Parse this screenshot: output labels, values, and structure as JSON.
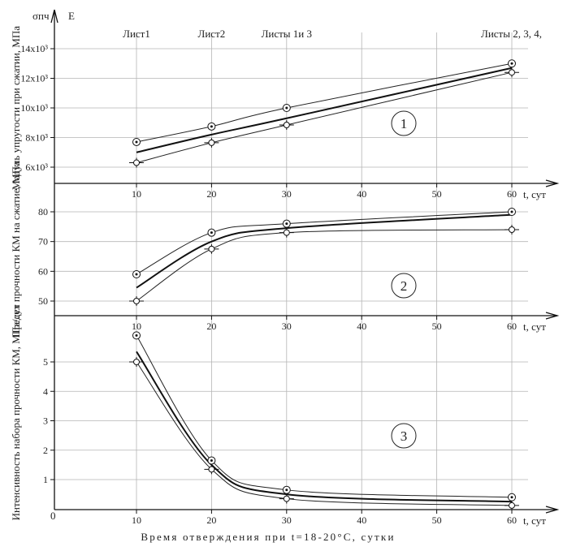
{
  "y_symbol_sigma": "σпч",
  "y_symbol_E": "E",
  "x_axis_title": "Время отверждения при t=18-20°C, сутки",
  "origin_label": "0",
  "sheet_labels": [
    {
      "text": "Лист1",
      "at_x": 10
    },
    {
      "text": "Лист2",
      "at_x": 20
    },
    {
      "text": "Листы 1и 3",
      "at_x": 30
    },
    {
      "text": "Листы 2, 3, 4,",
      "at_x": 60
    }
  ],
  "chart_data": [
    {
      "type": "line",
      "number": "1",
      "ylabel": "Модуль упругости при сжатии, МПа",
      "xlabel": "t, сут",
      "x_ticks": [
        10,
        20,
        30,
        40,
        50,
        60
      ],
      "xlim": [
        0,
        65
      ],
      "ylim": [
        5000,
        14500
      ],
      "y_ticks": [
        {
          "value": 6000,
          "label": "6x10³"
        },
        {
          "value": 8000,
          "label": "8x10³"
        },
        {
          "value": 10000,
          "label": "10x10³"
        },
        {
          "value": 12000,
          "label": "12x10³"
        },
        {
          "value": 14000,
          "label": "14x10³"
        }
      ],
      "x": [
        10,
        20,
        30,
        60
      ],
      "series": [
        {
          "role": "upper",
          "values": [
            7700,
            8750,
            10000,
            13000
          ]
        },
        {
          "role": "mean",
          "values": [
            7000,
            8200,
            9300,
            12700
          ]
        },
        {
          "role": "lower",
          "values": [
            6300,
            7650,
            8850,
            12400
          ]
        }
      ]
    },
    {
      "type": "line",
      "number": "2",
      "ylabel": "Предел прочности КМ на сжатие, МПа",
      "xlabel": "t, сут",
      "x_ticks": [
        10,
        20,
        30,
        40,
        50,
        60
      ],
      "xlim": [
        0,
        65
      ],
      "ylim": [
        45,
        88
      ],
      "y_ticks": [
        {
          "value": 50,
          "label": "50"
        },
        {
          "value": 60,
          "label": "60"
        },
        {
          "value": 70,
          "label": "70"
        },
        {
          "value": 80,
          "label": "80"
        }
      ],
      "x": [
        10,
        20,
        30,
        60
      ],
      "series": [
        {
          "role": "upper",
          "values": [
            59,
            73,
            76,
            80
          ]
        },
        {
          "role": "mean",
          "values": [
            54.5,
            70,
            74.5,
            79
          ]
        },
        {
          "role": "lower",
          "values": [
            50,
            67.5,
            73,
            74
          ]
        }
      ]
    },
    {
      "type": "line",
      "number": "3",
      "ylabel": "Интенсивность набора прочности КМ, МПа/сут",
      "xlabel": "t, сут",
      "x_ticks": [
        10,
        20,
        30,
        40,
        50,
        60
      ],
      "xlim": [
        0,
        65
      ],
      "ylim": [
        -0.3,
        6.4
      ],
      "y_ticks": [
        {
          "value": 1,
          "label": "1"
        },
        {
          "value": 2,
          "label": "2"
        },
        {
          "value": 3,
          "label": "3"
        },
        {
          "value": 4,
          "label": "4"
        },
        {
          "value": 5,
          "label": "5"
        }
      ],
      "x": [
        10,
        20,
        30,
        60
      ],
      "series": [
        {
          "role": "upper",
          "values": [
            5.9,
            1.65,
            0.65,
            0.4
          ]
        },
        {
          "role": "mean",
          "values": [
            5.35,
            1.5,
            0.5,
            0.25
          ]
        },
        {
          "role": "lower",
          "values": [
            5.0,
            1.35,
            0.35,
            0.12
          ]
        }
      ]
    }
  ]
}
